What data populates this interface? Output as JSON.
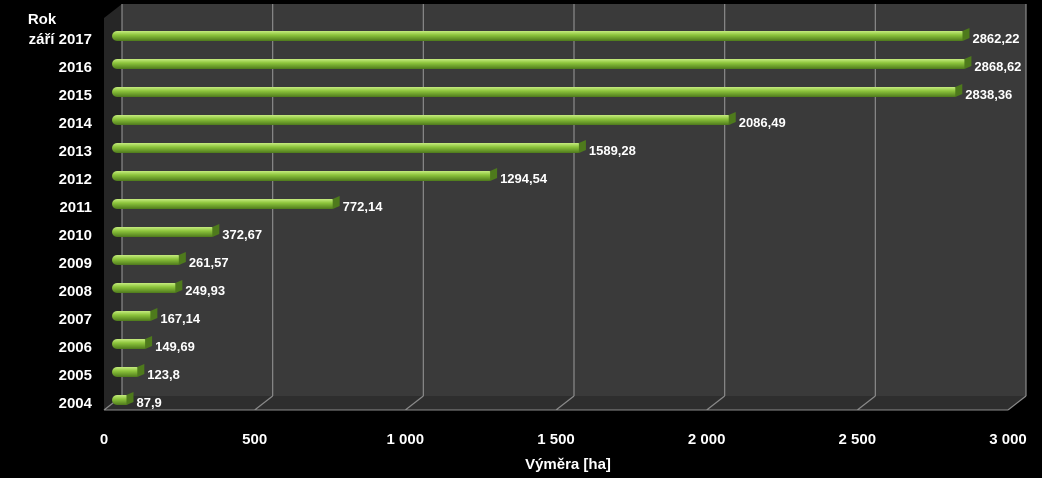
{
  "chart_data": {
    "type": "bar",
    "orientation": "horizontal",
    "style": "3d",
    "ylabel": "Rok",
    "xlabel": "Výměra [ha]",
    "categories": [
      "září 2017",
      "2016",
      "2015",
      "2014",
      "2013",
      "2012",
      "2011",
      "2010",
      "2009",
      "2008",
      "2007",
      "2006",
      "2005",
      "2004"
    ],
    "values": [
      2862.22,
      2868.62,
      2838.36,
      2086.49,
      1589.28,
      1294.54,
      772.14,
      372.67,
      261.57,
      249.93,
      167.14,
      149.69,
      123.8,
      87.9
    ],
    "value_labels": [
      "2862,22",
      "2868,62",
      "2838,36",
      "2086,49",
      "1589,28",
      "1294,54",
      "772,14",
      "372,67",
      "261,57",
      "249,93",
      "167,14",
      "149,69",
      "123,8",
      "87,9"
    ],
    "xticks": [
      0,
      500,
      1000,
      1500,
      2000,
      2500,
      3000
    ],
    "xtick_labels": [
      "0",
      "500",
      "1 000",
      "1 500",
      "2 000",
      "2 500",
      "3 000"
    ],
    "xlim": [
      0,
      3000
    ],
    "grid": true,
    "legend": "none",
    "colors": {
      "background": "#000000",
      "plot_back": "#3a3a3a",
      "plot_floor": "#2e2e2e",
      "plot_side": "#262626",
      "gridline": "#8a8a8a",
      "bar_fill": "#8cc43c",
      "bar_highlight": "#c6ec80",
      "bar_shadow": "#4e7a1c",
      "text": "#ffffff"
    }
  }
}
